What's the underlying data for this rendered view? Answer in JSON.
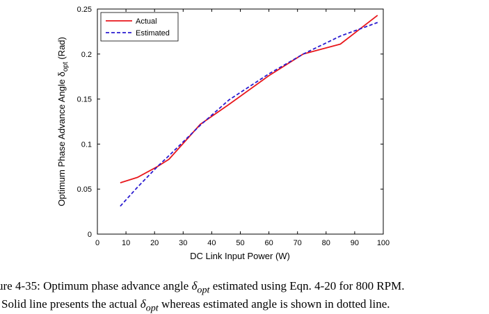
{
  "chart_data": {
    "type": "line",
    "xlabel": "DC Link Input Power (W)",
    "ylabel_main": "Optimum Phase Advance Angle δ",
    "ylabel_sub": "opt",
    "ylabel_unit": " (Rad)",
    "xlim": [
      0,
      100
    ],
    "ylim": [
      0,
      0.25
    ],
    "xticks": [
      0,
      10,
      20,
      30,
      40,
      50,
      60,
      70,
      80,
      90,
      100
    ],
    "yticks": [
      0,
      0.05,
      0.1,
      0.15,
      0.2,
      0.25
    ],
    "ytick_labels": [
      "0",
      "0.05",
      "0.1",
      "0.15",
      "0.2",
      "0.25"
    ],
    "grid": false,
    "legend_position": "top-left",
    "series": [
      {
        "name": "Actual",
        "color": "#e8161b",
        "style": "solid",
        "x": [
          8,
          14,
          21,
          25,
          36,
          46,
          60,
          72,
          85,
          98
        ],
        "y": [
          0.057,
          0.063,
          0.075,
          0.083,
          0.122,
          0.144,
          0.176,
          0.2,
          0.211,
          0.243
        ]
      },
      {
        "name": "Estimated",
        "color": "#2a1bd0",
        "style": "dashed",
        "x": [
          8,
          14,
          21,
          25,
          36,
          46,
          60,
          72,
          85,
          98
        ],
        "y": [
          0.031,
          0.052,
          0.075,
          0.087,
          0.121,
          0.149,
          0.178,
          0.2,
          0.22,
          0.235
        ]
      }
    ]
  },
  "caption": {
    "line1_prefix": "ure 4-35: Optimum phase advance angle ",
    "line1_math": "δ",
    "line1_sub": "opt",
    "line1_suffix": " estimated using Eqn. 4-20 for 800 RPM.",
    "line2_prefix": "Solid line presents the actual ",
    "line2_math": "δ",
    "line2_sub": "opt",
    "line2_suffix": " whereas estimated angle is shown in dotted line."
  }
}
